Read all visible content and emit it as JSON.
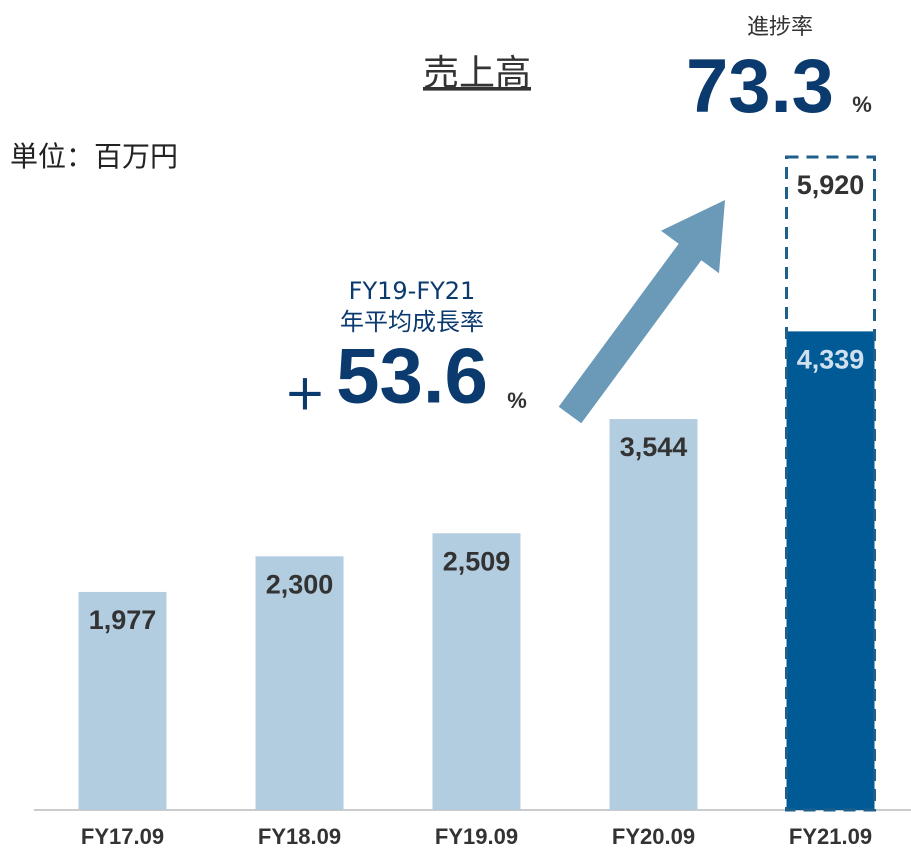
{
  "chart_data": {
    "type": "bar",
    "title": "売上高",
    "unit_label": "単位：百万円",
    "categories": [
      "FY17.09",
      "FY18.09",
      "FY19.09",
      "FY20.09",
      "FY21.09"
    ],
    "values": [
      1977,
      2300,
      2509,
      3544,
      4339
    ],
    "value_labels": [
      "1,977",
      "2,300",
      "2,509",
      "3,544",
      "4,339"
    ],
    "colors": [
      "#b3cde0",
      "#b3cde0",
      "#b3cde0",
      "#b3cde0",
      "#005a96"
    ],
    "target": 5920,
    "target_label": "5,920",
    "target_color": "#1f5f8b",
    "annotations": {
      "progress": {
        "label": "進捗率",
        "value": 73.3,
        "unit": "%"
      },
      "cagr": {
        "period": "FY19-FY21",
        "label": "年平均成長率",
        "sign": "+",
        "value": 53.6,
        "unit": "%"
      }
    }
  }
}
